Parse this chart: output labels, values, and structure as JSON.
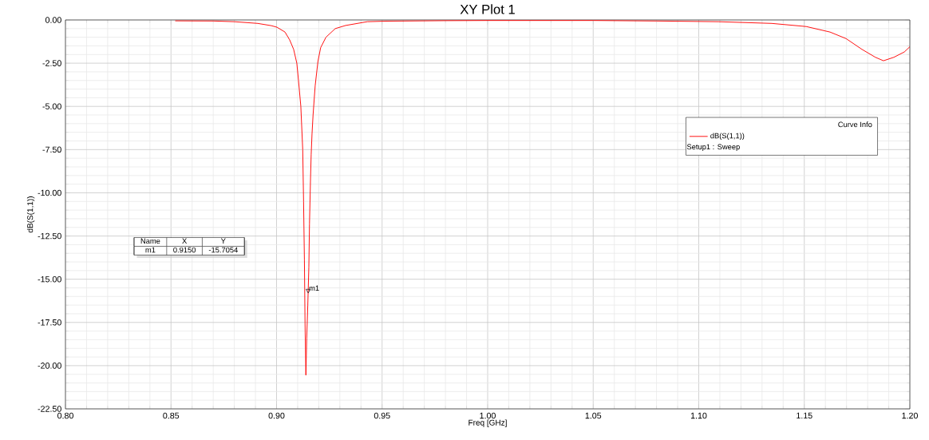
{
  "chart_data": {
    "type": "line",
    "title": "XY Plot 1",
    "xlabel": "Freq [GHz]",
    "ylabel": "dB(S(1,1))",
    "legend_title": "Curve Info",
    "x": [
      0.852,
      0.87,
      0.88,
      0.8911,
      0.8975,
      0.9002,
      0.904,
      0.9062,
      0.9081,
      0.9096,
      0.9104,
      0.9115,
      0.9124,
      0.9128,
      0.9132,
      0.9135,
      0.9139,
      0.9143,
      0.9148,
      0.9153,
      0.9156,
      0.9161,
      0.9164,
      0.9168,
      0.9173,
      0.9183,
      0.9196,
      0.9209,
      0.9234,
      0.9278,
      0.9327,
      0.943,
      0.9516,
      0.98,
      1.0,
      1.05,
      1.08,
      1.1093,
      1.1346,
      1.1509,
      1.1622,
      1.1698,
      1.1773,
      1.1837,
      1.1875,
      1.1924,
      1.1974,
      1.2
    ],
    "series": [
      {
        "name": "dB(S(1,1))",
        "color": "#ff0000",
        "values": [
          -0.05,
          -0.06,
          -0.1,
          -0.2,
          -0.33,
          -0.42,
          -0.7,
          -1.15,
          -1.7,
          -2.5,
          -3.5,
          -5.0,
          -7.5,
          -10.5,
          -13.9,
          -17.6,
          -20.55,
          -18.4,
          -16.5,
          -14.3,
          -11.8,
          -9.15,
          -7.8,
          -6.6,
          -5.5,
          -3.8,
          -2.4,
          -1.6,
          -1.0,
          -0.5,
          -0.32,
          -0.1,
          -0.07,
          -0.04,
          -0.03,
          -0.03,
          -0.06,
          -0.1,
          -0.2,
          -0.38,
          -0.7,
          -1.08,
          -1.7,
          -2.16,
          -2.36,
          -2.16,
          -1.85,
          -1.55
        ]
      }
    ],
    "xlim": [
      0.8,
      1.2
    ],
    "ylim": [
      -22.5,
      0
    ],
    "xticks": [
      {
        "value": 0.8,
        "label": "0.80"
      },
      {
        "value": 0.85,
        "label": "0.85"
      },
      {
        "value": 0.9,
        "label": "0.90"
      },
      {
        "value": 0.95,
        "label": "0.95"
      },
      {
        "value": 1.0,
        "label": "1.00"
      },
      {
        "value": 1.05,
        "label": "1.05"
      },
      {
        "value": 1.1,
        "label": "1.10"
      },
      {
        "value": 1.15,
        "label": "1.15"
      },
      {
        "value": 1.2,
        "label": "1.20"
      }
    ],
    "yticks": [
      {
        "value": 0,
        "label": "0.00"
      },
      {
        "value": -2.5,
        "label": "-2.50"
      },
      {
        "value": -5,
        "label": "-5.00"
      },
      {
        "value": -7.5,
        "label": "-7.50"
      },
      {
        "value": -10,
        "label": "-10.00"
      },
      {
        "value": -12.5,
        "label": "-12.50"
      },
      {
        "value": -15,
        "label": "-15.00"
      },
      {
        "value": -17.5,
        "label": "-17.50"
      },
      {
        "value": -20,
        "label": "-20.00"
      },
      {
        "value": -22.5,
        "label": "-22.50"
      }
    ],
    "grid": true,
    "legend": "top right",
    "line_style": "solid",
    "marker": "none",
    "annotations": [
      {
        "text": "m1",
        "x": 0.915,
        "y": -15.7054
      },
      "Name",
      "X",
      "Y",
      "m1",
      "0.9150",
      "-15.7054",
      "Setup1 : Sweep"
    ]
  }
}
